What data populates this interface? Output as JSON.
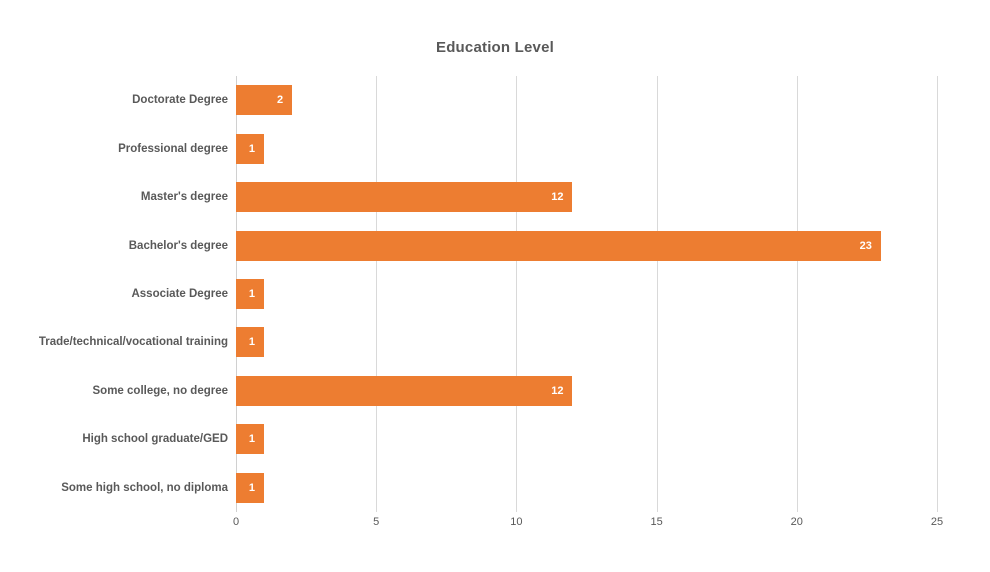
{
  "chart_data": {
    "type": "bar",
    "orientation": "horizontal",
    "title": "Education Level",
    "categories": [
      "Doctorate Degree",
      "Professional degree",
      "Master's degree",
      "Bachelor's degree",
      "Associate Degree",
      "Trade/technical/vocational training",
      "Some college, no degree",
      "High school graduate/GED",
      "Some high school, no diploma"
    ],
    "values": [
      2,
      1,
      12,
      23,
      1,
      1,
      12,
      1,
      1
    ],
    "xlabel": "",
    "ylabel": "",
    "xlim": [
      0,
      25
    ],
    "xticks": [
      0,
      5,
      10,
      15,
      20,
      25
    ],
    "grid": true,
    "legend": false,
    "value_labels_position": "inside-end",
    "colors": {
      "bar": "#ED7D31",
      "value_label": "#FFFFFF",
      "title": "#595959",
      "axis_label": "#595959",
      "gridline": "#D9D9D9",
      "background": "#FFFFFF"
    }
  }
}
